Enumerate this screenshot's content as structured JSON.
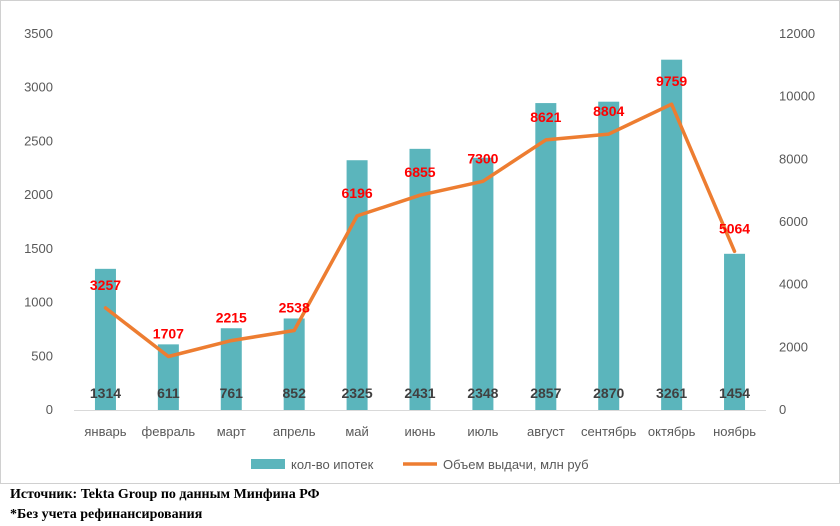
{
  "chart_data": {
    "type": "bar",
    "categories": [
      "январь",
      "февраль",
      "март",
      "апрель",
      "май",
      "июнь",
      "июль",
      "август",
      "сентябрь",
      "октябрь",
      "ноябрь"
    ],
    "series": [
      {
        "name": "кол-во ипотек",
        "type": "bar",
        "axis": "left",
        "color": "#5bb5bc",
        "values": [
          1314,
          611,
          761,
          852,
          2325,
          2431,
          2348,
          2857,
          2870,
          3261,
          1454
        ]
      },
      {
        "name": "Объем выдачи, млн руб",
        "type": "line",
        "axis": "right",
        "color": "#ed7d31",
        "values": [
          3257,
          1707,
          2215,
          2538,
          6196,
          6855,
          7300,
          8621,
          8804,
          9759,
          5064
        ]
      }
    ],
    "y_left": {
      "ylim": [
        0,
        3500
      ],
      "ticks": [
        0,
        500,
        1000,
        1500,
        2000,
        2500,
        3000,
        3500
      ]
    },
    "y_right": {
      "ylim": [
        0,
        12000
      ],
      "ticks": [
        0,
        2000,
        4000,
        6000,
        8000,
        10000,
        12000
      ]
    },
    "bar_labels_color": "#404040",
    "line_labels_color": "#ff0000",
    "grid": false,
    "legend": "bottom"
  },
  "footer": {
    "source": "Источник: Tekta Group по данным Минфина РФ",
    "note": "*Без учета рефинансирования"
  }
}
